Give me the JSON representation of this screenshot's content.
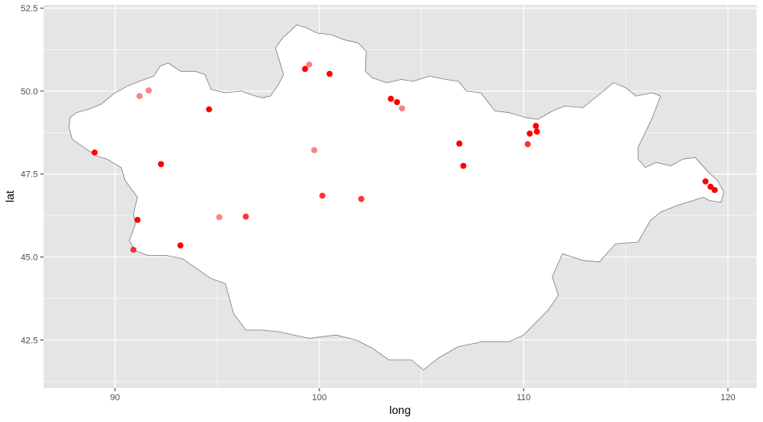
{
  "chart_data": {
    "type": "scatter",
    "title": "",
    "xlabel": "long",
    "ylabel": "lat",
    "xlim": [
      86.5,
      121.4
    ],
    "ylim": [
      41.05,
      52.6
    ],
    "x_ticks": [
      90,
      100,
      110,
      120
    ],
    "x_tick_labels": [
      "90",
      "100",
      "110",
      "120"
    ],
    "y_ticks": [
      42.5,
      45.0,
      47.5,
      50.0,
      52.5
    ],
    "y_tick_labels": [
      "42.5",
      "45.0",
      "47.5",
      "50.0",
      "52.5"
    ],
    "grid": true,
    "panel_background": "#e5e5e5",
    "grid_color": "#ffffff",
    "region_fill": "#ffffff",
    "region_outline": "#7f7f7f",
    "point_color": "#ff0000",
    "region_outline_lonlat": [
      [
        87.75,
        48.9
      ],
      [
        87.8,
        49.2
      ],
      [
        88.1,
        49.35
      ],
      [
        88.7,
        49.45
      ],
      [
        89.3,
        49.6
      ],
      [
        90.0,
        49.95
      ],
      [
        90.6,
        50.15
      ],
      [
        91.2,
        50.3
      ],
      [
        91.9,
        50.45
      ],
      [
        92.2,
        50.75
      ],
      [
        92.6,
        50.85
      ],
      [
        93.2,
        50.6
      ],
      [
        93.9,
        50.6
      ],
      [
        94.4,
        50.5
      ],
      [
        94.7,
        50.05
      ],
      [
        95.4,
        49.95
      ],
      [
        96.2,
        50.0
      ],
      [
        96.6,
        49.9
      ],
      [
        97.2,
        49.8
      ],
      [
        97.6,
        49.85
      ],
      [
        98.0,
        50.2
      ],
      [
        98.25,
        50.5
      ],
      [
        98.05,
        50.9
      ],
      [
        97.85,
        51.3
      ],
      [
        98.2,
        51.6
      ],
      [
        98.9,
        52.0
      ],
      [
        99.4,
        51.9
      ],
      [
        99.9,
        51.75
      ],
      [
        100.6,
        51.7
      ],
      [
        101.2,
        51.55
      ],
      [
        101.9,
        51.45
      ],
      [
        102.3,
        51.2
      ],
      [
        102.25,
        50.6
      ],
      [
        102.6,
        50.4
      ],
      [
        103.3,
        50.25
      ],
      [
        104.0,
        50.35
      ],
      [
        104.6,
        50.3
      ],
      [
        105.4,
        50.45
      ],
      [
        106.2,
        50.35
      ],
      [
        106.8,
        50.3
      ],
      [
        107.2,
        50.0
      ],
      [
        107.9,
        49.95
      ],
      [
        108.6,
        49.4
      ],
      [
        109.3,
        49.35
      ],
      [
        110.1,
        49.2
      ],
      [
        110.7,
        49.15
      ],
      [
        111.4,
        49.4
      ],
      [
        112.0,
        49.55
      ],
      [
        112.9,
        49.5
      ],
      [
        113.7,
        49.9
      ],
      [
        114.4,
        50.25
      ],
      [
        115.0,
        50.1
      ],
      [
        115.5,
        49.85
      ],
      [
        116.3,
        49.95
      ],
      [
        116.7,
        49.85
      ],
      [
        116.3,
        49.2
      ],
      [
        115.6,
        48.3
      ],
      [
        115.6,
        47.95
      ],
      [
        115.95,
        47.7
      ],
      [
        116.5,
        47.85
      ],
      [
        117.2,
        47.75
      ],
      [
        117.8,
        47.95
      ],
      [
        118.4,
        48.0
      ],
      [
        119.05,
        47.55
      ],
      [
        119.5,
        47.3
      ],
      [
        119.8,
        46.95
      ],
      [
        119.65,
        46.65
      ],
      [
        119.1,
        46.7
      ],
      [
        118.8,
        46.8
      ],
      [
        117.5,
        46.55
      ],
      [
        116.7,
        46.35
      ],
      [
        116.2,
        46.1
      ],
      [
        115.6,
        45.45
      ],
      [
        114.5,
        45.4
      ],
      [
        113.7,
        44.85
      ],
      [
        112.9,
        44.9
      ],
      [
        111.9,
        45.1
      ],
      [
        111.4,
        44.4
      ],
      [
        111.7,
        43.85
      ],
      [
        111.2,
        43.4
      ],
      [
        110.0,
        42.65
      ],
      [
        109.3,
        42.45
      ],
      [
        108.0,
        42.45
      ],
      [
        106.8,
        42.3
      ],
      [
        105.8,
        41.95
      ],
      [
        105.1,
        41.6
      ],
      [
        104.5,
        41.9
      ],
      [
        103.4,
        41.9
      ],
      [
        102.6,
        42.25
      ],
      [
        101.8,
        42.5
      ],
      [
        100.8,
        42.65
      ],
      [
        99.5,
        42.55
      ],
      [
        98.0,
        42.75
      ],
      [
        97.2,
        42.8
      ],
      [
        96.4,
        42.8
      ],
      [
        95.8,
        43.3
      ],
      [
        95.4,
        44.2
      ],
      [
        94.7,
        44.35
      ],
      [
        94.0,
        44.65
      ],
      [
        93.3,
        44.95
      ],
      [
        92.5,
        45.05
      ],
      [
        91.6,
        45.05
      ],
      [
        90.95,
        45.2
      ],
      [
        90.7,
        45.5
      ],
      [
        91.0,
        46.0
      ],
      [
        90.9,
        46.3
      ],
      [
        91.1,
        46.8
      ],
      [
        90.5,
        47.3
      ],
      [
        90.3,
        47.7
      ],
      [
        89.6,
        47.95
      ],
      [
        89.1,
        48.05
      ],
      [
        88.6,
        48.25
      ],
      [
        87.9,
        48.55
      ]
    ],
    "series": [
      {
        "points": [
          {
            "lon": 89.0,
            "lat": 48.15,
            "opacity": 1.0
          },
          {
            "lon": 91.2,
            "lat": 49.85,
            "opacity": 0.5
          },
          {
            "lon": 91.65,
            "lat": 50.02,
            "opacity": 0.5
          },
          {
            "lon": 92.25,
            "lat": 47.8,
            "opacity": 1.0
          },
          {
            "lon": 94.6,
            "lat": 49.45,
            "opacity": 1.0
          },
          {
            "lon": 99.3,
            "lat": 50.67,
            "opacity": 1.0
          },
          {
            "lon": 99.5,
            "lat": 50.8,
            "opacity": 0.5
          },
          {
            "lon": 100.5,
            "lat": 50.52,
            "opacity": 1.0
          },
          {
            "lon": 103.5,
            "lat": 49.77,
            "opacity": 1.0
          },
          {
            "lon": 103.8,
            "lat": 49.67,
            "opacity": 1.0
          },
          {
            "lon": 104.05,
            "lat": 49.48,
            "opacity": 0.5
          },
          {
            "lon": 99.75,
            "lat": 48.22,
            "opacity": 0.5
          },
          {
            "lon": 100.15,
            "lat": 46.85,
            "opacity": 0.8
          },
          {
            "lon": 102.05,
            "lat": 46.75,
            "opacity": 0.8
          },
          {
            "lon": 106.85,
            "lat": 48.42,
            "opacity": 1.0
          },
          {
            "lon": 107.05,
            "lat": 47.75,
            "opacity": 1.0
          },
          {
            "lon": 110.3,
            "lat": 48.72,
            "opacity": 1.0
          },
          {
            "lon": 110.6,
            "lat": 48.95,
            "opacity": 1.0
          },
          {
            "lon": 110.65,
            "lat": 48.78,
            "opacity": 1.0
          },
          {
            "lon": 110.2,
            "lat": 48.4,
            "opacity": 0.8
          },
          {
            "lon": 91.1,
            "lat": 46.12,
            "opacity": 1.0
          },
          {
            "lon": 90.9,
            "lat": 45.22,
            "opacity": 0.8
          },
          {
            "lon": 93.2,
            "lat": 45.35,
            "opacity": 1.0
          },
          {
            "lon": 95.1,
            "lat": 46.2,
            "opacity": 0.5
          },
          {
            "lon": 96.4,
            "lat": 46.22,
            "opacity": 0.8
          },
          {
            "lon": 118.9,
            "lat": 47.28,
            "opacity": 1.0
          },
          {
            "lon": 119.15,
            "lat": 47.12,
            "opacity": 1.0
          },
          {
            "lon": 119.35,
            "lat": 47.02,
            "opacity": 1.0
          }
        ]
      }
    ]
  }
}
